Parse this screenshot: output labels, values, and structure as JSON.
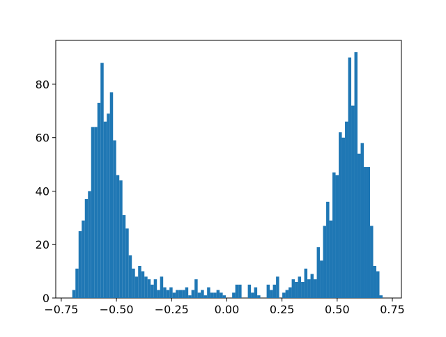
{
  "chart_data": {
    "type": "histogram",
    "color": "#1f77b4",
    "bins": [
      -0.7,
      -0.6858,
      -0.6716,
      -0.6574,
      -0.6432,
      -0.629,
      -0.6148,
      -0.6006,
      -0.5864,
      -0.5722,
      -0.558,
      -0.5438,
      -0.5296,
      -0.5154,
      -0.5012,
      -0.487,
      -0.4728,
      -0.4586,
      -0.4444,
      -0.4302,
      -0.416,
      -0.4018,
      -0.3876,
      -0.3734,
      -0.3592,
      -0.345,
      -0.3308,
      -0.3166,
      -0.3024,
      -0.2882,
      -0.274,
      -0.2598,
      -0.2456,
      -0.2314,
      -0.2172,
      -0.203,
      -0.1888,
      -0.1746,
      -0.1604,
      -0.1462,
      -0.132,
      -0.1178,
      -0.1036,
      -0.0894,
      -0.0752,
      -0.061,
      -0.0468,
      -0.0326,
      -0.0184,
      -0.0042,
      0.01,
      0.0242,
      0.0384,
      0.0526,
      0.0668,
      0.081,
      0.0952,
      0.1094,
      0.1236,
      0.1378,
      0.152,
      0.1662,
      0.1804,
      0.1946,
      0.2088,
      0.223,
      0.2372,
      0.2514,
      0.2656,
      0.2798,
      0.294,
      0.3082,
      0.3224,
      0.3366,
      0.3508,
      0.365,
      0.3792,
      0.3934,
      0.4076,
      0.4218,
      0.436,
      0.4502,
      0.4644,
      0.4786,
      0.4928,
      0.507,
      0.5212,
      0.5354,
      0.5496,
      0.5638,
      0.578,
      0.5922,
      0.6064,
      0.6206,
      0.6348,
      0.649,
      0.6632,
      0.6774,
      0.6916,
      0.7058,
      0.72
    ],
    "values": [
      3,
      11,
      25,
      29,
      37,
      40,
      64,
      64,
      73,
      88,
      66,
      69,
      77,
      59,
      46,
      44,
      31,
      26,
      16,
      11,
      8,
      12,
      10,
      8,
      7,
      5,
      7,
      3,
      8,
      4,
      3,
      4,
      2,
      3,
      3,
      3,
      4,
      1,
      3,
      7,
      2,
      3,
      1,
      4,
      2,
      2,
      3,
      2,
      1,
      0,
      0,
      2,
      5,
      5,
      0,
      0,
      5,
      2,
      4,
      1,
      0,
      0,
      5,
      3,
      5,
      8,
      0,
      2,
      3,
      4,
      7,
      6,
      8,
      6,
      11,
      7,
      9,
      7,
      19,
      14,
      27,
      36,
      29,
      47,
      46,
      62,
      60,
      66,
      90,
      72,
      92,
      54,
      58,
      49,
      49,
      27,
      12,
      10,
      1,
      0
    ],
    "xlim": [
      -0.775,
      0.791
    ],
    "ylim": [
      0,
      96.4
    ],
    "xticks": [
      {
        "value": -0.75,
        "label": "−0.75"
      },
      {
        "value": -0.5,
        "label": "−0.50"
      },
      {
        "value": -0.25,
        "label": "−0.25"
      },
      {
        "value": 0,
        "label": "0.00"
      },
      {
        "value": 0.25,
        "label": "0.25"
      },
      {
        "value": 0.5,
        "label": "0.50"
      },
      {
        "value": 0.75,
        "label": "0.75"
      }
    ],
    "yticks": [
      0,
      20,
      40,
      60,
      80
    ]
  }
}
